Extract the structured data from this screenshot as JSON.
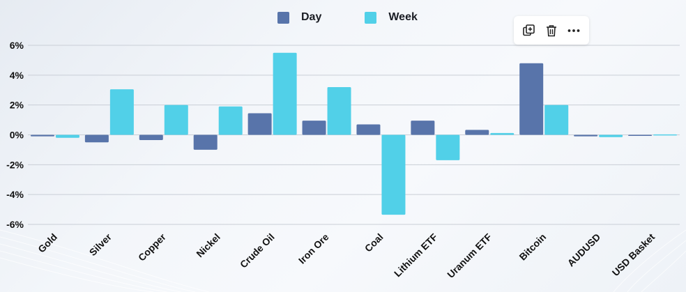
{
  "legend": {
    "items": [
      {
        "label": "Day",
        "color": "#5874aa"
      },
      {
        "label": "Week",
        "color": "#51d0e8"
      }
    ]
  },
  "toolbar": {
    "icons": [
      "duplicate-icon",
      "trash-icon",
      "more-icon"
    ]
  },
  "chart_data": {
    "type": "bar",
    "categories": [
      "Gold",
      "Silver",
      "Copper",
      "Nickel",
      "Crude Oil",
      "Iron Ore",
      "Coal",
      "Lithium ETF",
      "Uranum ETF",
      "Bitcoin",
      "AUDUSD",
      "USD Basket"
    ],
    "series": [
      {
        "name": "Day",
        "color": "#5874aa",
        "values": [
          -0.1,
          -0.5,
          -0.35,
          -1.0,
          1.45,
          0.95,
          0.7,
          0.95,
          0.33,
          4.8,
          -0.1,
          -0.03
        ]
      },
      {
        "name": "Week",
        "color": "#51d0e8",
        "values": [
          -0.2,
          3.05,
          2.0,
          1.9,
          5.5,
          3.2,
          -5.35,
          -1.7,
          0.12,
          2.0,
          -0.15,
          0.03
        ]
      }
    ],
    "yticks": [
      "6%",
      "4%",
      "2%",
      "0%",
      "-2%",
      "-4%",
      "-6%"
    ],
    "ylim": [
      -6,
      6
    ],
    "grid": true,
    "legend_position": "top-center"
  }
}
